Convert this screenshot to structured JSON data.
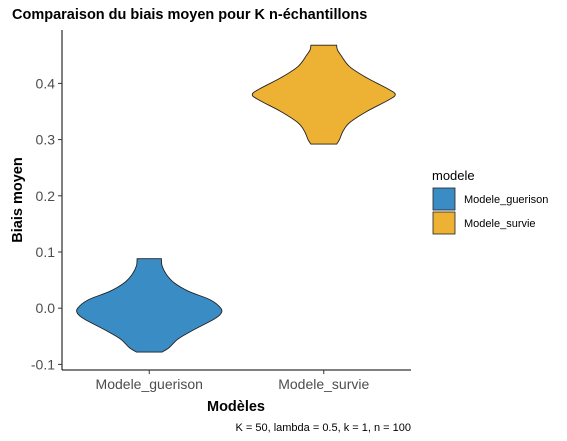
{
  "chart_data": {
    "type": "violin",
    "title": "Comparaison du biais moyen pour K n-échantillons",
    "xlabel": "Modèles",
    "ylabel": "Biais moyen",
    "caption": "K = 50, lambda = 0.5, k = 1, n = 100",
    "categories": [
      "Modele_guerison",
      "Modele_survie"
    ],
    "ylim": [
      -0.11,
      0.495
    ],
    "yticks": [
      -0.1,
      0.0,
      0.1,
      0.2,
      0.3,
      0.4
    ],
    "ytick_labels": [
      "-0.1",
      "0.0",
      "0.1",
      "0.2",
      "0.3",
      "0.4"
    ],
    "legend": {
      "title": "modele",
      "position": "right",
      "entries": [
        {
          "label": "Modele_guerison",
          "color": "#3a8dc4"
        },
        {
          "label": "Modele_survie",
          "color": "#edb133"
        }
      ]
    },
    "series": [
      {
        "name": "Modele_guerison",
        "color": "#3a8dc4",
        "density": [
          [
            -0.078,
            0.18
          ],
          [
            -0.07,
            0.28
          ],
          [
            -0.055,
            0.4
          ],
          [
            -0.04,
            0.6
          ],
          [
            -0.02,
            0.9
          ],
          [
            -0.01,
            1.0
          ],
          [
            0.0,
            1.0
          ],
          [
            0.015,
            0.85
          ],
          [
            0.03,
            0.55
          ],
          [
            0.045,
            0.35
          ],
          [
            0.06,
            0.24
          ],
          [
            0.075,
            0.18
          ],
          [
            0.088,
            0.17
          ]
        ]
      },
      {
        "name": "Modele_survie",
        "color": "#edb133",
        "density": [
          [
            0.292,
            0.18
          ],
          [
            0.3,
            0.22
          ],
          [
            0.315,
            0.27
          ],
          [
            0.33,
            0.36
          ],
          [
            0.35,
            0.6
          ],
          [
            0.37,
            0.9
          ],
          [
            0.38,
            1.0
          ],
          [
            0.39,
            0.9
          ],
          [
            0.41,
            0.6
          ],
          [
            0.43,
            0.36
          ],
          [
            0.45,
            0.24
          ],
          [
            0.46,
            0.19
          ],
          [
            0.468,
            0.18
          ]
        ]
      }
    ]
  }
}
